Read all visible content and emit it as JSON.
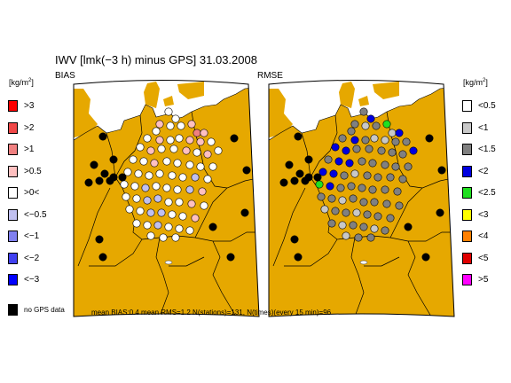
{
  "title": "IWV [lmk(−3 h) minus GPS] 31.03.2008",
  "unit_left": "[kg/m",
  "unit_sup": "2",
  "unit_close": "]",
  "unit_right": "[kg/m",
  "panels": {
    "left": {
      "label": "BIAS"
    },
    "right": {
      "label": "RMSE"
    }
  },
  "bias_legend": [
    {
      "label": ">3",
      "color": "#ff0000"
    },
    {
      "label": ">2",
      "color": "#f04848"
    },
    {
      "label": ">1",
      "color": "#f08080"
    },
    {
      "label": ">0.5",
      "color": "#ffc0c0"
    },
    {
      "label": ">0<",
      "color": "#ffffff"
    },
    {
      "label": "<−0.5",
      "color": "#c0c0f0"
    },
    {
      "label": "<−1",
      "color": "#8080f0"
    },
    {
      "label": "<−2",
      "color": "#4040f0"
    },
    {
      "label": "<−3",
      "color": "#0000ff"
    }
  ],
  "rmse_legend": [
    {
      "label": "<0.5",
      "color": "#ffffff"
    },
    {
      "label": "<1",
      "color": "#c8c8c8"
    },
    {
      "label": "<1.5",
      "color": "#808080"
    },
    {
      "label": "<2",
      "color": "#0000e0"
    },
    {
      "label": "<2.5",
      "color": "#20e020"
    },
    {
      "label": "<3",
      "color": "#ffff00"
    },
    {
      "label": "<4",
      "color": "#ff8000"
    },
    {
      "label": "<5",
      "color": "#e00000"
    },
    {
      "label": ">5",
      "color": "#ff00ff"
    }
  ],
  "no_data": {
    "label": "no GPS data",
    "color": "#000000"
  },
  "summary": "mean BIAS:0.4  mean RMS=1.2  N(stations)=131, N(times)(every 15 min)=96",
  "colors": {
    "land": "#e6a800",
    "sea": "#ffffff",
    "border": "#000000"
  }
}
